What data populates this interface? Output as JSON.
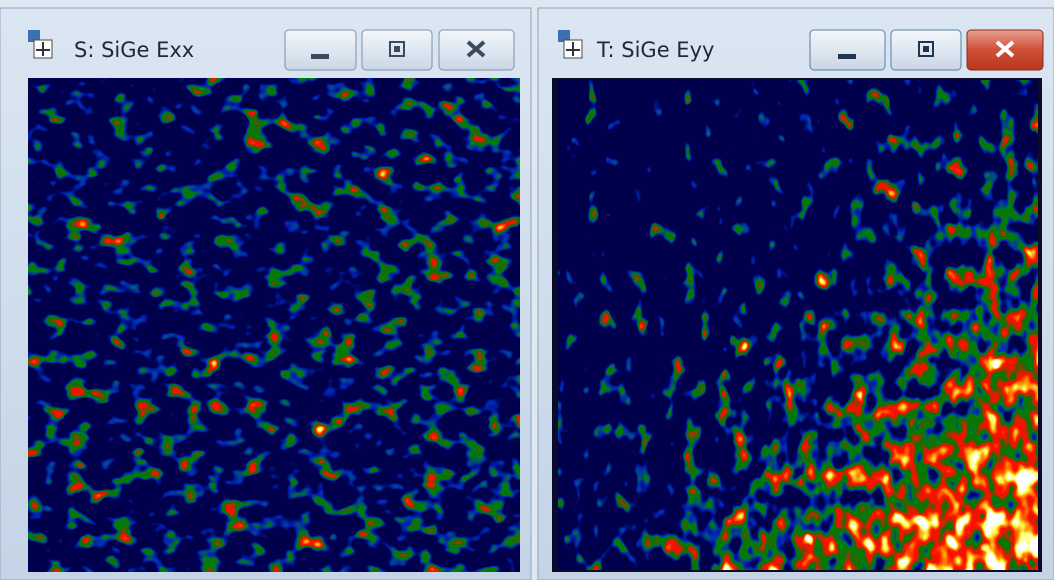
{
  "windows": [
    {
      "title": "S: SiGe Exx"
    },
    {
      "title": "T: SiGe Eyy"
    }
  ]
}
